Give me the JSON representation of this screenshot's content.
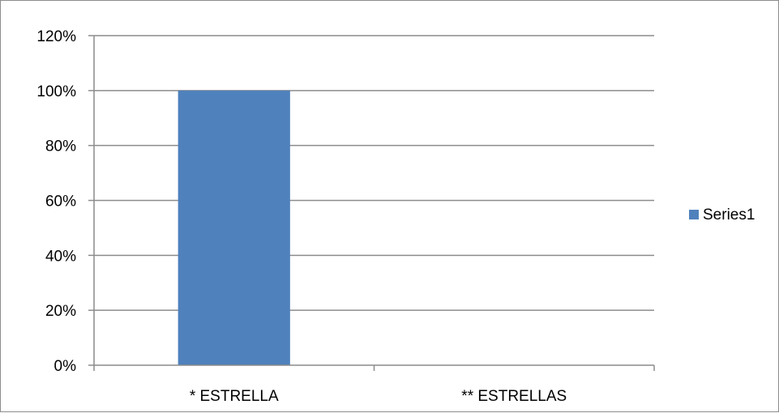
{
  "chart_data": {
    "type": "bar",
    "categories": [
      "* ESTRELLA",
      "** ESTRELLAS"
    ],
    "series": [
      {
        "name": "Series1",
        "values": [
          1.0,
          0.0
        ],
        "color": "#4f81bd"
      }
    ],
    "ylim": [
      0,
      1.2
    ],
    "y_ticks": [
      0,
      0.2,
      0.4,
      0.6,
      0.8,
      1.0,
      1.2
    ],
    "y_tick_labels": [
      "0%",
      "20%",
      "40%",
      "60%",
      "80%",
      "100%",
      "120%"
    ],
    "grid": true,
    "grid_color": "#8c8c8c",
    "legend_position": "right"
  }
}
